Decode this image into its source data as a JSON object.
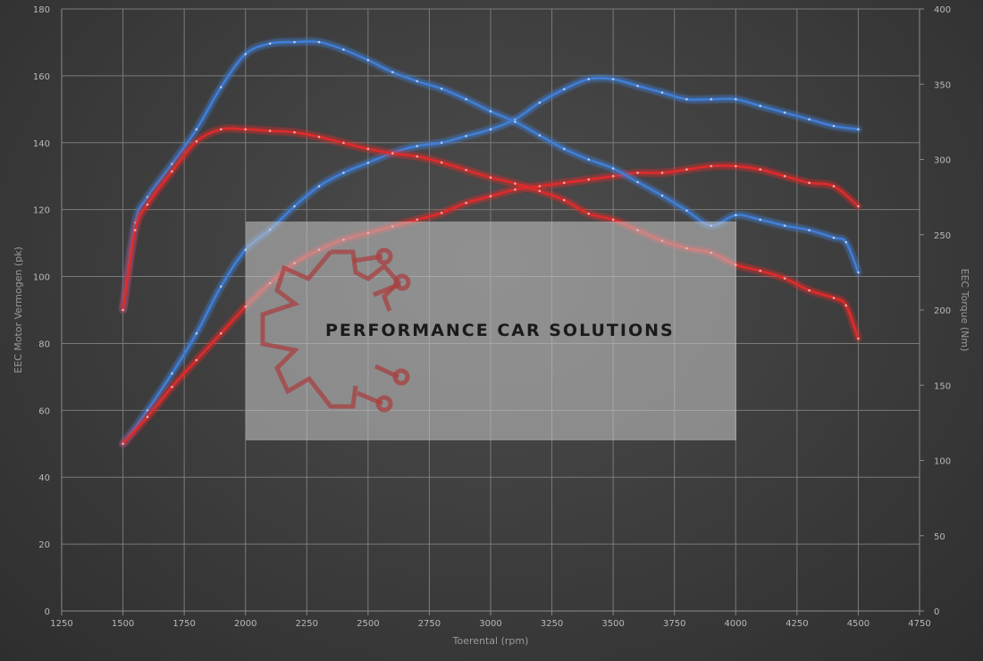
{
  "chart_data": {
    "type": "line",
    "xlabel": "Toerental (rpm)",
    "ylabel_left": "EEC Motor Vermogen (pk)",
    "ylabel_right": "EEC Torque (Nm)",
    "xlim": [
      1250,
      4750
    ],
    "ylim_left": [
      0,
      180
    ],
    "ylim_right": [
      0,
      400
    ],
    "x_ticks": [
      1250,
      1500,
      1750,
      2000,
      2250,
      2500,
      2750,
      3000,
      3250,
      3500,
      3750,
      4000,
      4250,
      4500,
      4750
    ],
    "y_left_ticks": [
      0,
      20,
      40,
      60,
      80,
      100,
      120,
      140,
      160,
      180
    ],
    "y_right_ticks": [
      0,
      50,
      100,
      150,
      200,
      250,
      300,
      350,
      400
    ],
    "grid": true,
    "series": [
      {
        "axis": "left",
        "color": "#3f7fd8",
        "x": [
          1500,
          1600,
          1700,
          1800,
          1900,
          2000,
          2100,
          2200,
          2300,
          2400,
          2500,
          2600,
          2700,
          2800,
          2900,
          3000,
          3100,
          3200,
          3300,
          3400,
          3500,
          3600,
          3700,
          3800,
          3900,
          4000,
          4100,
          4200,
          4300,
          4400,
          4500
        ],
        "values": [
          50,
          60,
          71,
          83,
          97,
          108,
          114,
          121,
          127,
          131,
          134,
          137,
          139,
          140,
          142,
          144,
          147,
          152,
          156,
          159,
          159,
          157,
          155,
          153,
          153,
          153,
          151,
          149,
          147,
          145,
          144
        ]
      },
      {
        "axis": "left",
        "color": "#e02a2a",
        "x": [
          1500,
          1600,
          1700,
          1800,
          1900,
          2000,
          2100,
          2200,
          2300,
          2400,
          2500,
          2600,
          2700,
          2800,
          2900,
          3000,
          3100,
          3200,
          3300,
          3400,
          3500,
          3600,
          3700,
          3800,
          3900,
          4000,
          4100,
          4200,
          4300,
          4400,
          4500
        ],
        "values": [
          50,
          58,
          67,
          75,
          83,
          91,
          98,
          104,
          108,
          111,
          113,
          115,
          117,
          119,
          122,
          124,
          126,
          127,
          128,
          129,
          130,
          131,
          131,
          132,
          133,
          133,
          132,
          130,
          128,
          127,
          121
        ]
      },
      {
        "axis": "right",
        "color": "#3f7fd8",
        "x": [
          1500,
          1550,
          1600,
          1700,
          1800,
          1900,
          2000,
          2100,
          2200,
          2300,
          2400,
          2500,
          2600,
          2700,
          2800,
          2900,
          3000,
          3100,
          3200,
          3300,
          3400,
          3500,
          3600,
          3700,
          3800,
          3900,
          4000,
          4100,
          4200,
          4300,
          4400,
          4450,
          4500
        ],
        "values": [
          200,
          258,
          275,
          297,
          320,
          348,
          370,
          377,
          378,
          378,
          373,
          366,
          358,
          352,
          347,
          340,
          332,
          325,
          316,
          307,
          300,
          294,
          285,
          276,
          266,
          256,
          263,
          260,
          256,
          253,
          248,
          245,
          225
        ]
      },
      {
        "axis": "right",
        "color": "#e02a2a",
        "x": [
          1500,
          1550,
          1600,
          1700,
          1800,
          1900,
          2000,
          2100,
          2200,
          2300,
          2400,
          2500,
          2600,
          2700,
          2800,
          2900,
          3000,
          3100,
          3200,
          3300,
          3400,
          3500,
          3600,
          3700,
          3800,
          3900,
          4000,
          4100,
          4200,
          4300,
          4400,
          4450,
          4500
        ],
        "values": [
          200,
          253,
          270,
          292,
          312,
          320,
          320,
          319,
          318,
          315,
          311,
          307,
          304,
          302,
          298,
          293,
          288,
          284,
          279,
          273,
          264,
          260,
          253,
          246,
          241,
          238,
          230,
          226,
          221,
          213,
          208,
          203,
          181
        ]
      }
    ]
  },
  "watermark": {
    "text": "PERFORMANCE CAR SOLUTIONS",
    "logo_icon": "gear-circuit-icon"
  }
}
